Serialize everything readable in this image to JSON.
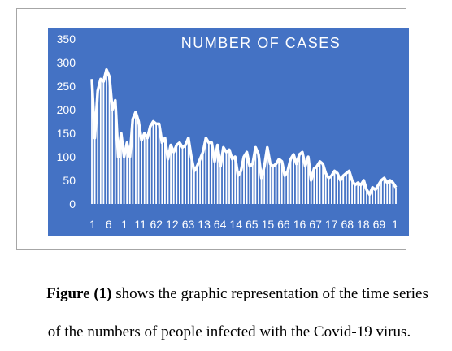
{
  "chart_data": {
    "type": "bar",
    "title": "NUMBER OF CASES",
    "ylim": [
      0,
      350
    ],
    "yticks": [
      0,
      50,
      100,
      150,
      200,
      250,
      300,
      350
    ],
    "xtick_labels": [
      "1",
      "6",
      "1",
      "11",
      "62",
      "12",
      "63",
      "13",
      "64",
      "14",
      "65",
      "15",
      "66",
      "16",
      "67",
      "17",
      "68",
      "18",
      "69",
      "1"
    ],
    "grid": false,
    "legend": "none",
    "colors": {
      "background": "#4472c4",
      "bars": "#ffffff",
      "line": "#ffffff",
      "text": "#ffffff"
    },
    "values": [
      265,
      140,
      240,
      265,
      260,
      285,
      270,
      200,
      220,
      100,
      150,
      100,
      130,
      100,
      180,
      195,
      175,
      135,
      150,
      140,
      165,
      175,
      170,
      170,
      130,
      140,
      95,
      125,
      110,
      125,
      130,
      120,
      125,
      140,
      100,
      70,
      80,
      95,
      110,
      140,
      130,
      130,
      90,
      125,
      80,
      120,
      110,
      115,
      95,
      100,
      60,
      70,
      100,
      110,
      80,
      85,
      120,
      105,
      55,
      80,
      120,
      85,
      80,
      85,
      95,
      90,
      60,
      70,
      95,
      105,
      85,
      105,
      110,
      80,
      100,
      50,
      75,
      80,
      90,
      85,
      65,
      55,
      60,
      70,
      65,
      50,
      60,
      65,
      70,
      50,
      40,
      45,
      40,
      50,
      30,
      20,
      35,
      30,
      40,
      50,
      55,
      45,
      50,
      45,
      35
    ]
  },
  "caption": {
    "figure_label": "Figure (1)",
    "line1_rest": " shows the graphic representation of the time series",
    "line2": "of the numbers of people infected with the Covid-19 virus."
  }
}
